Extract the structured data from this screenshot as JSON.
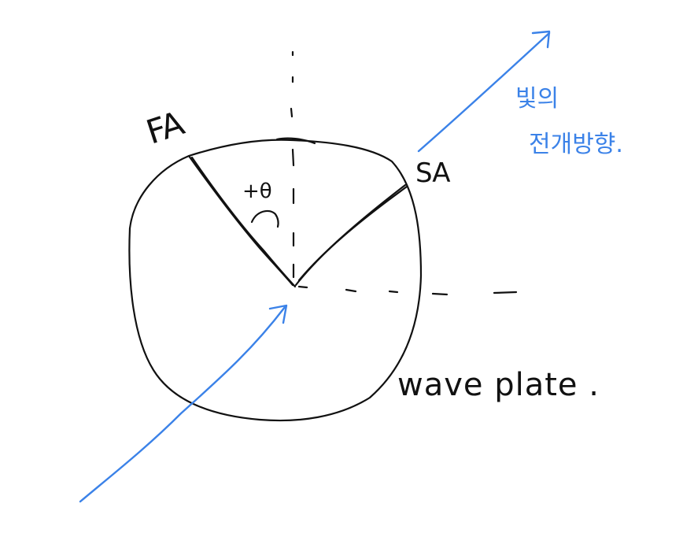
{
  "diagram": {
    "labels": {
      "fast_axis": "FA",
      "slow_axis": "SA",
      "angle": "+θ",
      "plate_name": "wave plate .",
      "propagation_line1": "빛의",
      "propagation_line2": "전개방향."
    },
    "colors": {
      "ink": "#111111",
      "light_arrow": "#3b82e8"
    }
  }
}
